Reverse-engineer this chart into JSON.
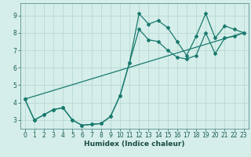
{
  "title": "",
  "xlabel": "Humidex (Indice chaleur)",
  "bg_color": "#d5eeea",
  "grid_color": "#b8d8d4",
  "line_color": "#1a7a6e",
  "marker_color": "#1a7a6e",
  "xlim": [
    -0.5,
    23.5
  ],
  "ylim": [
    2.5,
    9.7
  ],
  "xticks": [
    0,
    1,
    2,
    3,
    4,
    5,
    6,
    7,
    8,
    9,
    10,
    11,
    12,
    13,
    14,
    15,
    16,
    17,
    18,
    19,
    20,
    21,
    22,
    23
  ],
  "yticks": [
    3,
    4,
    5,
    6,
    7,
    8,
    9
  ],
  "series1_x": [
    0,
    1,
    2,
    3,
    4,
    5,
    6,
    7,
    8,
    9,
    10,
    11,
    12,
    13,
    14,
    15,
    16,
    17,
    18,
    19,
    20,
    21,
    22,
    23
  ],
  "series1_y": [
    4.2,
    3.0,
    3.3,
    3.6,
    3.7,
    3.0,
    2.7,
    2.75,
    2.8,
    3.2,
    4.4,
    6.3,
    9.1,
    8.5,
    8.7,
    8.3,
    7.5,
    6.7,
    7.8,
    9.1,
    7.7,
    8.4,
    8.2,
    8.0
  ],
  "series2_x": [
    0,
    1,
    2,
    3,
    4,
    5,
    6,
    7,
    8,
    9,
    10,
    11,
    12,
    13,
    14,
    15,
    16,
    17,
    18,
    19,
    20,
    21,
    22,
    23
  ],
  "series2_y": [
    4.2,
    3.0,
    3.3,
    3.6,
    3.7,
    3.0,
    2.7,
    2.75,
    2.8,
    3.2,
    4.4,
    6.3,
    8.2,
    7.6,
    7.5,
    7.0,
    6.6,
    6.5,
    6.7,
    8.0,
    6.8,
    7.7,
    7.8,
    8.0
  ],
  "series3_x": [
    0,
    23
  ],
  "series3_y": [
    4.2,
    8.0
  ]
}
